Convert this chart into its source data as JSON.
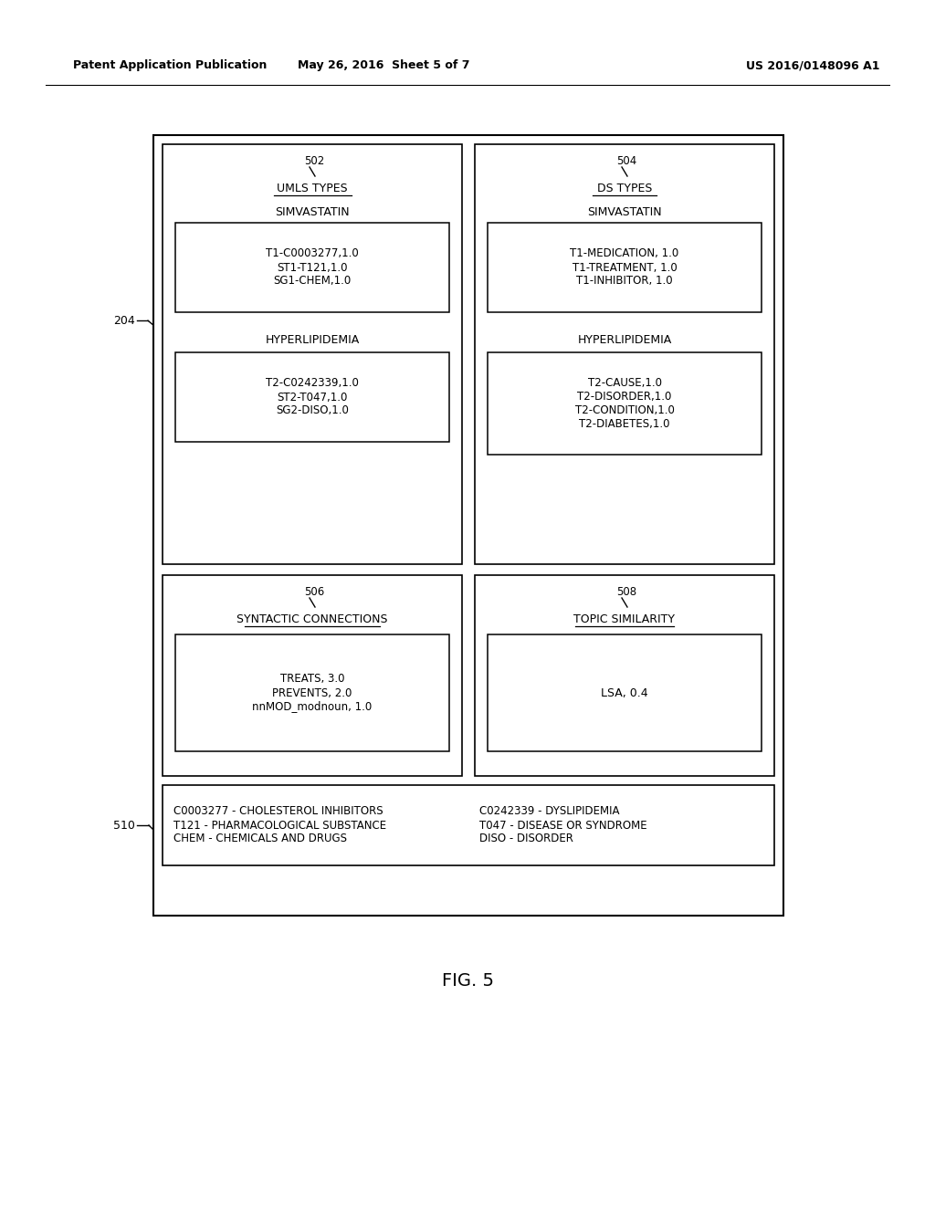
{
  "bg_color": "#ffffff",
  "header_left": "Patent Application Publication",
  "header_mid": "May 26, 2016  Sheet 5 of 7",
  "header_right": "US 2016/0148096 A1",
  "figure_label": "FIG. 5",
  "label_204": "204",
  "label_510": "510",
  "box502_label": "502",
  "box502_title": "UMLS TYPES",
  "box504_label": "504",
  "box504_title": "DS TYPES",
  "box506_label": "506",
  "box506_title": "SYNTACTIC CONNECTIONS",
  "box508_label": "508",
  "box508_title": "TOPIC SIMILARITY",
  "simvastatin_left": "SIMVASTATIN",
  "box502_inner": "T1-C0003277,1.0\nST1-T121,1.0\nSG1-CHEM,1.0",
  "hyperlipidemia_left": "HYPERLIPIDEMIA",
  "box502_inner2": "T2-C0242339,1.0\nST2-T047,1.0\nSG2-DISO,1.0",
  "simvastatin_right": "SIMVASTATIN",
  "box504_inner": "T1-MEDICATION, 1.0\nT1-TREATMENT, 1.0\nT1-INHIBITOR, 1.0",
  "hyperlipidemia_right": "HYPERLIPIDEMIA",
  "box504_inner2": "T2-CAUSE,1.0\nT2-DISORDER,1.0\nT2-CONDITION,1.0\nT2-DIABETES,1.0",
  "box506_inner": "TREATS, 3.0\nPREVENTS, 2.0\nnnMOD_modnoun, 1.0",
  "box508_inner": "LSA, 0.4",
  "box510_left": "C0003277 - CHOLESTEROL INHIBITORS\nT121 - PHARMACOLOGICAL SUBSTANCE\nCHEM - CHEMICALS AND DRUGS",
  "box510_right": "C0242339 - DYSLIPIDEMIA\nT047 - DISEASE OR SYNDROME\nDISO - DISORDER"
}
